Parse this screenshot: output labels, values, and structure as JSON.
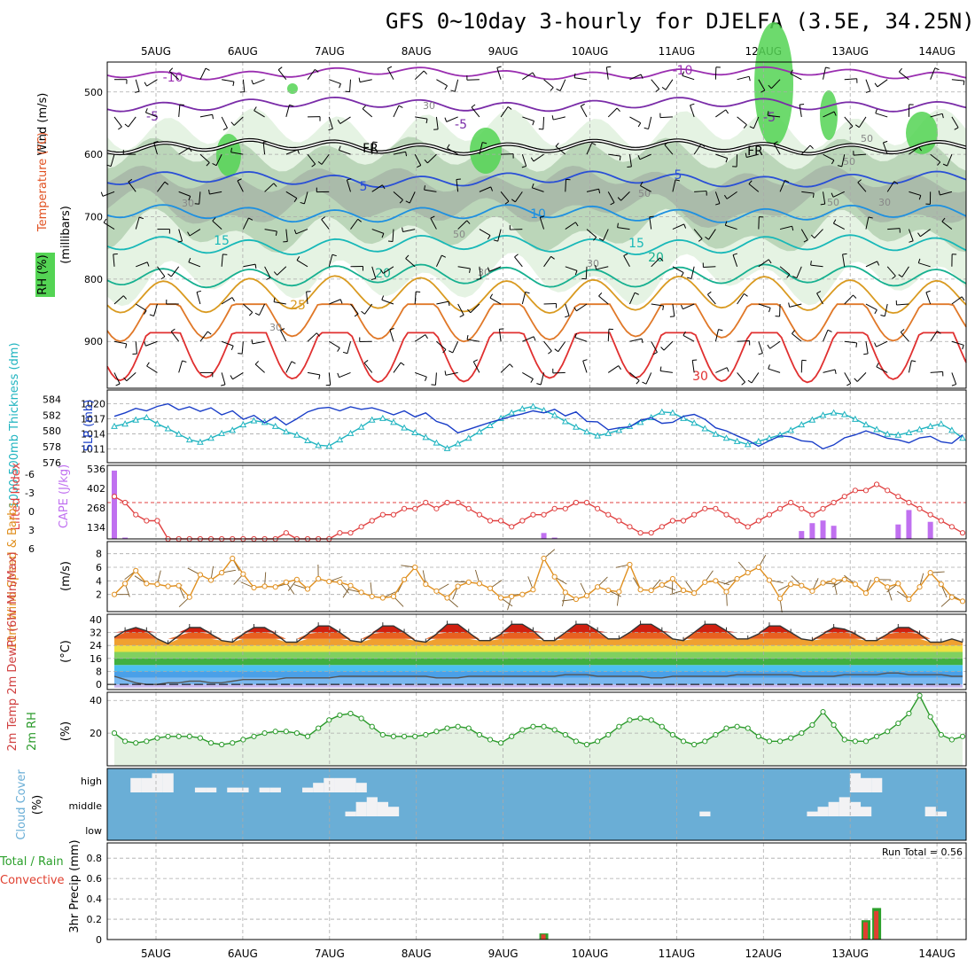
{
  "title": "GFS 0~10day 3-hourly for DJELFA (3.5E, 34.25N)",
  "dates": [
    "5AUG",
    "6AUG",
    "7AUG",
    "8AUG",
    "9AUG",
    "10AUG",
    "11AUG",
    "12AUG",
    "13AUG",
    "14AUG"
  ],
  "colors": {
    "temp_neg10": "#9a2eb0",
    "temp_neg5": "#7a2ca8",
    "freezing": "#000000",
    "temp5": "#2a4fd6",
    "temp10": "#1e90e0",
    "temp15": "#18b8b8",
    "temp20": "#16b090",
    "temp25": "#d99a20",
    "temp30": "#e07828",
    "temp35": "#e03030",
    "rh_light": "#e4f2e2",
    "rh_mid": "#b8d4b6",
    "rh_dark": "#a9b9a9",
    "rh_green": "#54d454",
    "slp": "#1a3ec8",
    "thickness": "#20b4c0",
    "lifted": "#e04040",
    "cape": "#c070f0",
    "wind": "#e09020",
    "cloud": "#6aaed6",
    "rh2m": "#2a9a2a",
    "precip_total": "#2ca02c",
    "precip_conv": "#e04030"
  },
  "panels": {
    "upper": {
      "ylabel_wind": "Wind (m/s)",
      "ylabel_temp": "Temperature (°C)",
      "ylabel_rh": "RH (%)",
      "ylabel_mb": "(millibars)",
      "ticks": [
        "500",
        "600",
        "700",
        "800",
        "900"
      ],
      "contour_labels": [
        {
          "text": "-10",
          "color": "temp_neg10"
        },
        {
          "text": "-10",
          "color": "temp_neg10"
        },
        {
          "text": "-5",
          "color": "temp_neg5"
        },
        {
          "text": "-5",
          "color": "temp_neg5"
        },
        {
          "text": "-5",
          "color": "temp_neg5"
        },
        {
          "text": "FR",
          "color": "freezing"
        },
        {
          "text": "FR",
          "color": "freezing"
        },
        {
          "text": "5",
          "color": "temp5"
        },
        {
          "text": "5",
          "color": "temp5"
        },
        {
          "text": "10",
          "color": "temp10"
        },
        {
          "text": "15",
          "color": "temp15"
        },
        {
          "text": "15",
          "color": "temp15"
        },
        {
          "text": "20",
          "color": "temp20"
        },
        {
          "text": "20",
          "color": "temp20"
        },
        {
          "text": "25",
          "color": "temp25"
        },
        {
          "text": "30",
          "color": "temp35"
        }
      ],
      "rh_labels": [
        "30",
        "50",
        "30",
        "50",
        "30",
        "30",
        "50",
        "30",
        "30",
        "50",
        "50"
      ]
    },
    "slp": {
      "ylabel_thick": "1000-500mb Thickness (dm)",
      "ylabel_slp": "SLP (mb)",
      "left_ticks": [
        "584",
        "582",
        "580",
        "578",
        "576"
      ],
      "right_ticks": [
        "1020",
        "1017",
        "1014",
        "1011"
      ]
    },
    "cape": {
      "ylabel_li": "Lifted Index",
      "ylabel_cape": "CAPE (J/kg)",
      "left_ticks": [
        "-6",
        "-3",
        "0",
        "3",
        "6"
      ],
      "right_ticks": [
        "536",
        "402",
        "268",
        "134"
      ]
    },
    "wind": {
      "ylabel": "10m Wind Speed & Barbs",
      "unit": "(m/s)",
      "ticks": [
        "8",
        "6",
        "4",
        "2"
      ]
    },
    "temp": {
      "ylabel": "2m Temp 2m DewPt (6hr Min/Max)",
      "unit": "(°C)",
      "ticks": [
        "40",
        "32",
        "24",
        "16",
        "8",
        "0"
      ]
    },
    "rh": {
      "ylabel": "2m RH",
      "unit": "(%)",
      "ticks": [
        "40",
        "20"
      ]
    },
    "cloud": {
      "ylabel": "Cloud Cover",
      "unit": "(%)",
      "levels": [
        "high",
        "middle",
        "low"
      ]
    },
    "precip": {
      "ylabel_total": "Total / Rain",
      "ylabel_conv": "Convective",
      "ylabel": "3hr Precip (mm)",
      "ticks": [
        "0.8",
        "0.6",
        "0.4",
        "0.2",
        "0"
      ],
      "ticks_full": [
        "0.8",
        "0.6",
        "0.4",
        "0.2",
        "0"
      ],
      "run_total": "Run Total = 0.56"
    }
  },
  "chart_data": {
    "type": "line",
    "title": "GFS 0~10day 3-hourly for DJELFA (3.5E, 34.25N)",
    "x": [
      "4AUG 12Z",
      "+3h steps x 80"
    ],
    "x_ticks": [
      "5AUG",
      "6AUG",
      "7AUG",
      "8AUG",
      "9AUG",
      "10AUG",
      "11AUG",
      "12AUG",
      "13AUG",
      "14AUG"
    ],
    "slp_mb": [
      1017.5,
      1018.2,
      1019.1,
      1018.6,
      1019.5,
      1020,
      1018.8,
      1019.4,
      1018.5,
      1019.2,
      1017.8,
      1018.6,
      1016.9,
      1017.7,
      1016.2,
      1017.4,
      1015.8,
      1017,
      1018.4,
      1019.1,
      1019.3,
      1018.6,
      1019.4,
      1018.9,
      1019.2,
      1018.6,
      1017.8,
      1018.6,
      1017.4,
      1018.2,
      1016.5,
      1015.8,
      1014.2,
      1014.9,
      1015.6,
      1016.3,
      1016.9,
      1017.5,
      1018,
      1018.6,
      1018.2,
      1018.9,
      1017.6,
      1018.4,
      1016.5,
      1016.4,
      1014.8,
      1015.2,
      1015.4,
      1016.7,
      1017.2,
      1016.1,
      1016.3,
      1017.5,
      1017.9,
      1016.9,
      1015.2,
      1014.6,
      1013.6,
      1012.7,
      1011.5,
      1012.6,
      1013.6,
      1013.4,
      1012.6,
      1012.4,
      1011,
      1011.8,
      1013.2,
      1013.8,
      1014.6,
      1013.9,
      1013.1,
      1012.8,
      1012.2,
      1013.2,
      1013.5,
      1012.4,
      1012.1,
      1013.8
    ],
    "thickness_dm": [
      580.6,
      580.9,
      581.4,
      581.7,
      580.9,
      580.3,
      579.6,
      578.9,
      578.6,
      579.1,
      579.7,
      580.1,
      580.8,
      581.3,
      581.1,
      580.6,
      579.9,
      579.5,
      578.8,
      578.2,
      578.1,
      578.9,
      579.7,
      580.5,
      581.4,
      581.6,
      581.1,
      580.4,
      579.8,
      579.2,
      578.5,
      577.8,
      578.4,
      579.1,
      579.9,
      580.7,
      581.6,
      582.3,
      582.8,
      583.1,
      582.6,
      582,
      581.2,
      580.5,
      579.9,
      579.4,
      579.7,
      580.1,
      580.6,
      581.1,
      581.7,
      582.4,
      582.3,
      581.6,
      581,
      580.3,
      579.6,
      579.1,
      578.7,
      578.3,
      578.7,
      579.1,
      579.5,
      580.1,
      580.8,
      581.4,
      582,
      582.3,
      582.1,
      581.5,
      580.8,
      580.2,
      579.6,
      579.5,
      579.8,
      580.2,
      580.6,
      580.9,
      580.1,
      579.1
    ],
    "lifted_index": [
      -1,
      0,
      2,
      3,
      3,
      6,
      7,
      8,
      9,
      8,
      9,
      8,
      8,
      7,
      6,
      6,
      5,
      6,
      6,
      7,
      6,
      5,
      5,
      4,
      3,
      2,
      2,
      1,
      1,
      0,
      1,
      0,
      0,
      1,
      2,
      3,
      3,
      4,
      3,
      2,
      2,
      1,
      1,
      0,
      0,
      1,
      2,
      3,
      4,
      5,
      5,
      4,
      3,
      3,
      2,
      1,
      1,
      2,
      3,
      4,
      3,
      2,
      1,
      0,
      1,
      2,
      1,
      0,
      -1,
      -2,
      -2,
      -3,
      -2,
      -1,
      0,
      1,
      2,
      3,
      4,
      5
    ],
    "cape_jkg": [
      520,
      10,
      0,
      0,
      0,
      0,
      0,
      0,
      0,
      0,
      0,
      0,
      0,
      0,
      0,
      0,
      0,
      0,
      0,
      0,
      0,
      0,
      0,
      0,
      0,
      0,
      0,
      0,
      0,
      0,
      0,
      0,
      0,
      0,
      0,
      0,
      0,
      0,
      0,
      0,
      45,
      10,
      0,
      0,
      0,
      0,
      0,
      0,
      0,
      0,
      0,
      0,
      0,
      0,
      0,
      0,
      0,
      0,
      0,
      0,
      0,
      0,
      0,
      0,
      60,
      120,
      140,
      100,
      0,
      0,
      0,
      0,
      0,
      110,
      220,
      0,
      130,
      0,
      0,
      0
    ],
    "wind_ms": [
      2,
      3.6,
      5.5,
      3.6,
      3.5,
      3.2,
      3.3,
      1.6,
      4.9,
      4.1,
      5.2,
      7.3,
      5,
      3,
      3.2,
      3.1,
      3.8,
      4.2,
      2.8,
      4.3,
      3.9,
      3.8,
      3.3,
      2.3,
      1.7,
      1.5,
      1.7,
      4.2,
      6,
      3.5,
      2.5,
      1.5,
      3.2,
      3.8,
      3.6,
      2.9,
      1.5,
      1.7,
      2,
      2.7,
      7.3,
      4.6,
      2.3,
      1.3,
      1.8,
      3.1,
      2.6,
      2.4,
      6.4,
      2.7,
      2.6,
      3.4,
      4.3,
      2.6,
      2.2,
      3.8,
      4,
      2.4,
      4.3,
      5.2,
      6,
      4.1,
      1.4,
      3.5,
      3.3,
      2.5,
      3.7,
      4,
      4.2,
      3.5,
      2.2,
      4.2,
      3.1,
      3.6,
      1.3,
      3.1,
      5.2,
      3.5,
      1.6,
      1
    ],
    "temp_max_c": [
      29,
      33,
      35,
      33,
      28,
      25,
      30,
      35,
      35,
      31,
      27,
      26,
      31,
      35,
      35,
      31,
      26,
      26,
      31,
      36,
      36,
      32,
      27,
      26,
      31,
      36,
      36,
      32,
      27,
      26,
      31,
      37,
      37,
      32,
      27,
      27,
      31,
      37,
      37,
      33,
      27,
      27,
      32,
      37,
      37,
      33,
      28,
      28,
      32,
      37,
      37,
      33,
      28,
      27,
      32,
      37,
      37,
      33,
      28,
      28,
      31,
      36,
      36,
      32,
      28,
      27,
      31,
      35,
      34,
      31,
      27,
      27,
      31,
      35,
      35,
      31,
      26,
      26,
      28,
      26
    ],
    "dewpt_c": [
      5,
      3,
      1,
      0,
      0,
      1,
      1,
      2,
      2,
      1,
      1,
      2,
      3,
      3,
      3,
      3,
      4,
      4,
      4,
      4,
      4,
      5,
      5,
      5,
      5,
      5,
      5,
      5,
      5,
      5,
      4,
      4,
      4,
      5,
      5,
      5,
      5,
      5,
      5,
      5,
      5,
      5,
      6,
      6,
      6,
      5,
      5,
      5,
      5,
      5,
      4,
      4,
      5,
      5,
      5,
      5,
      5,
      5,
      6,
      6,
      6,
      6,
      6,
      6,
      5,
      5,
      5,
      5,
      6,
      6,
      6,
      6,
      7,
      7,
      6,
      6,
      6,
      6,
      5,
      5
    ],
    "rh2m_pct": [
      20,
      15,
      14,
      15,
      17,
      18,
      18,
      18,
      17,
      14,
      13,
      14,
      16,
      18,
      20,
      21,
      21,
      20,
      18,
      23,
      28,
      31,
      32,
      29,
      24,
      19,
      18,
      18,
      18,
      19,
      21,
      23,
      24,
      23,
      19,
      16,
      14,
      18,
      22,
      24,
      24,
      22,
      19,
      15,
      13,
      15,
      19,
      24,
      28,
      29,
      28,
      24,
      19,
      15,
      13,
      15,
      19,
      23,
      24,
      23,
      18,
      15,
      15,
      17,
      20,
      25,
      33,
      25,
      16,
      15,
      15,
      18,
      21,
      26,
      32,
      43,
      30,
      19,
      16,
      18
    ],
    "precip_total_mm": [
      0,
      0,
      0,
      0,
      0,
      0,
      0,
      0,
      0,
      0,
      0,
      0,
      0,
      0,
      0,
      0,
      0,
      0,
      0,
      0,
      0,
      0,
      0,
      0,
      0,
      0,
      0,
      0,
      0,
      0,
      0,
      0,
      0,
      0,
      0,
      0,
      0,
      0,
      0,
      0,
      0.06,
      0,
      0,
      0,
      0,
      0,
      0,
      0,
      0,
      0,
      0,
      0,
      0,
      0,
      0,
      0,
      0,
      0,
      0,
      0,
      0,
      0,
      0,
      0,
      0,
      0,
      0,
      0,
      0,
      0,
      0.19,
      0.31,
      0,
      0,
      0,
      0,
      0,
      0,
      0,
      0
    ],
    "precip_conv_mm": [
      0,
      0,
      0,
      0,
      0,
      0,
      0,
      0,
      0,
      0,
      0,
      0,
      0,
      0,
      0,
      0,
      0,
      0,
      0,
      0,
      0,
      0,
      0,
      0,
      0,
      0,
      0,
      0,
      0,
      0,
      0,
      0,
      0,
      0,
      0,
      0,
      0,
      0,
      0,
      0,
      0.05,
      0,
      0,
      0,
      0,
      0,
      0,
      0,
      0,
      0,
      0,
      0,
      0,
      0,
      0,
      0,
      0,
      0,
      0,
      0,
      0,
      0,
      0,
      0,
      0,
      0,
      0,
      0,
      0,
      0,
      0.17,
      0.28,
      0,
      0,
      0,
      0,
      0,
      0,
      0,
      0
    ],
    "run_total_mm": 0.56,
    "cloud_high_pct": [
      0,
      0,
      60,
      60,
      80,
      80,
      0,
      0,
      20,
      20,
      0,
      20,
      20,
      0,
      20,
      20,
      0,
      0,
      20,
      40,
      60,
      60,
      60,
      40,
      0,
      0,
      0,
      0,
      0,
      0,
      0,
      0,
      0,
      0,
      0,
      0,
      0,
      0,
      0,
      0,
      0,
      0,
      0,
      0,
      0,
      0,
      0,
      0,
      0,
      0,
      0,
      0,
      0,
      0,
      0,
      0,
      0,
      0,
      0,
      0,
      0,
      0,
      0,
      0,
      0,
      0,
      0,
      0,
      0,
      80,
      60,
      60,
      0,
      0,
      0,
      0,
      0,
      0,
      0,
      0
    ],
    "cloud_mid_pct": [
      0,
      0,
      0,
      0,
      0,
      0,
      0,
      0,
      0,
      0,
      0,
      0,
      0,
      0,
      0,
      0,
      0,
      0,
      0,
      0,
      0,
      0,
      20,
      60,
      80,
      60,
      40,
      0,
      0,
      0,
      0,
      0,
      0,
      0,
      0,
      0,
      0,
      0,
      0,
      0,
      0,
      0,
      0,
      0,
      0,
      0,
      0,
      0,
      0,
      0,
      0,
      0,
      0,
      0,
      0,
      20,
      0,
      0,
      0,
      0,
      0,
      0,
      0,
      0,
      0,
      20,
      40,
      60,
      80,
      60,
      40,
      0,
      0,
      0,
      0,
      0,
      40,
      20,
      0,
      0
    ],
    "ylim_precip": [
      0,
      0.9
    ],
    "ylim_rh": [
      0,
      45
    ],
    "ylim_wind": [
      0,
      9
    ]
  }
}
